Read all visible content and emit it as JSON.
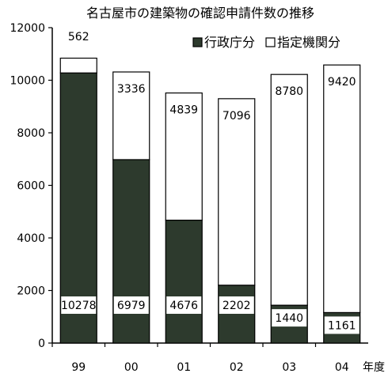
{
  "chart_data": {
    "type": "bar",
    "stacked": true,
    "title": "名古屋市の建築物の確認申請件数の推移",
    "xlabel": "年度",
    "ylabel": "",
    "categories": [
      "99",
      "00",
      "01",
      "02",
      "03",
      "04"
    ],
    "ylim": [
      0,
      12000
    ],
    "yticks": [
      0,
      2000,
      4000,
      6000,
      8000,
      10000,
      12000
    ],
    "grid": false,
    "legend_position": "top-right",
    "series": [
      {
        "name": "行政庁分",
        "values": [
          10278,
          6979,
          4676,
          2202,
          1440,
          1161
        ],
        "labels": [
          "10278",
          "6979",
          "4676",
          "2202",
          "1440",
          "1161"
        ],
        "color": "#2d3a2d"
      },
      {
        "name": "指定機関分",
        "values": [
          562,
          3336,
          4839,
          7096,
          8780,
          9420
        ],
        "labels": [
          "562",
          "3336",
          "4839",
          "7096",
          "8780",
          "9420"
        ],
        "color": "#ffffff"
      }
    ]
  }
}
